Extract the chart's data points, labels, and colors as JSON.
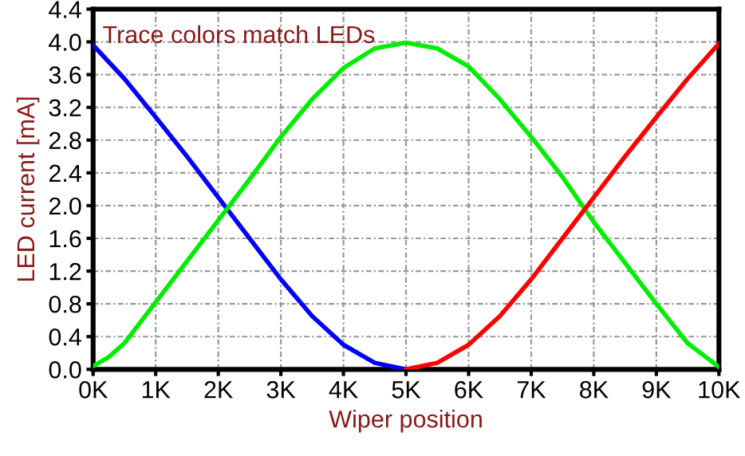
{
  "chart_data": {
    "type": "line",
    "xlabel": "Wiper position",
    "ylabel": "LED current [mA]",
    "annotations": [
      "Trace colors match LEDs"
    ],
    "series": [
      {
        "color": "#0000ff",
        "x": [
          0,
          500,
          1000,
          1500,
          2000,
          2500,
          3000,
          3500,
          4000,
          4500,
          5000
        ],
        "values": [
          3.96,
          3.55,
          3.08,
          2.6,
          2.1,
          1.6,
          1.1,
          0.65,
          0.3,
          0.08,
          0.0
        ]
      },
      {
        "color": "#00ee00",
        "x": [
          0,
          250,
          500,
          1000,
          1500,
          2000,
          2500,
          3000,
          3500,
          4000,
          4500,
          5000,
          5500,
          6000,
          6500,
          7000,
          7500,
          8000,
          8500,
          9000,
          9500,
          10000
        ],
        "values": [
          0.04,
          0.15,
          0.32,
          0.82,
          1.32,
          1.82,
          2.32,
          2.84,
          3.3,
          3.68,
          3.92,
          3.99,
          3.92,
          3.7,
          3.3,
          2.84,
          2.35,
          1.8,
          1.3,
          0.8,
          0.32,
          0.03
        ]
      },
      {
        "color": "#ff0000",
        "x": [
          5000,
          5500,
          6000,
          6500,
          7000,
          7500,
          8000,
          8500,
          9000,
          9500,
          10000
        ],
        "values": [
          0.0,
          0.08,
          0.3,
          0.65,
          1.1,
          1.6,
          2.1,
          2.6,
          3.08,
          3.55,
          3.98
        ]
      }
    ],
    "xlim": [
      0,
      10000
    ],
    "xticks": [
      {
        "value": 0,
        "label": "0K"
      },
      {
        "value": 1000,
        "label": "1K"
      },
      {
        "value": 2000,
        "label": "2K"
      },
      {
        "value": 3000,
        "label": "3K"
      },
      {
        "value": 4000,
        "label": "4K"
      },
      {
        "value": 5000,
        "label": "5K"
      },
      {
        "value": 6000,
        "label": "6K"
      },
      {
        "value": 7000,
        "label": "7K"
      },
      {
        "value": 8000,
        "label": "8K"
      },
      {
        "value": 9000,
        "label": "9K"
      },
      {
        "value": 10000,
        "label": "10K"
      }
    ],
    "ylim": [
      0,
      4.4
    ],
    "yticks": [
      {
        "value": 0,
        "label": "0.0"
      },
      {
        "value": 0.4,
        "label": "0.4"
      },
      {
        "value": 0.8,
        "label": "0.8"
      },
      {
        "value": 1.2,
        "label": "1.2"
      },
      {
        "value": 1.6,
        "label": "1.6"
      },
      {
        "value": 2.0,
        "label": "2.0"
      },
      {
        "value": 2.4,
        "label": "2.4"
      },
      {
        "value": 2.8,
        "label": "2.8"
      },
      {
        "value": 3.2,
        "label": "3.2"
      },
      {
        "value": 3.6,
        "label": "3.6"
      },
      {
        "value": 4.0,
        "label": "4.0"
      },
      {
        "value": 4.4,
        "label": "4.4"
      }
    ],
    "grid": true,
    "line_style": "solid",
    "marker": "none"
  }
}
